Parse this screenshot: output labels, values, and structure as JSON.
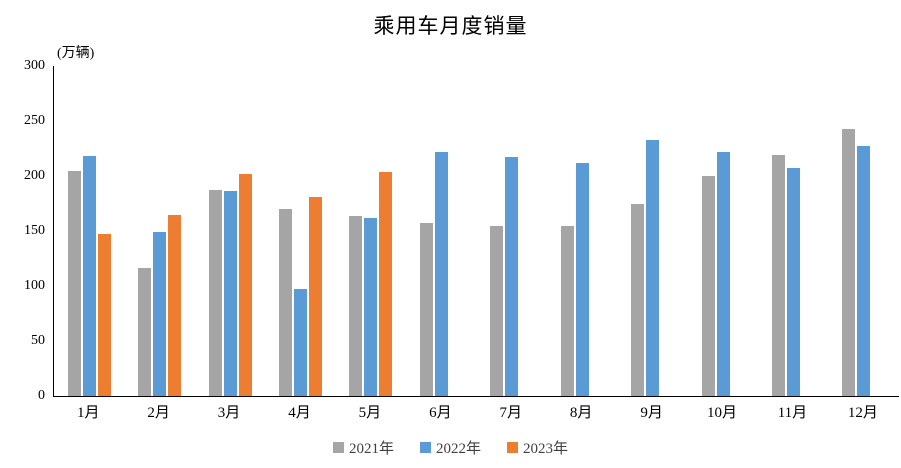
{
  "chart_data": {
    "type": "bar",
    "title": "乘用车月度销量",
    "unit_label": "(万辆)",
    "categories": [
      "1月",
      "2月",
      "3月",
      "4月",
      "5月",
      "6月",
      "7月",
      "8月",
      "9月",
      "10月",
      "11月",
      "12月"
    ],
    "series": [
      {
        "name": "2021年",
        "color": "#A5A5A5",
        "values": [
          205,
          116,
          187,
          170,
          164,
          157,
          155,
          155,
          175,
          200,
          219,
          243
        ]
      },
      {
        "name": "2022年",
        "color": "#5B9BD5",
        "values": [
          218,
          149,
          186,
          97,
          162,
          222,
          217,
          212,
          233,
          222,
          207,
          227
        ]
      },
      {
        "name": "2023年",
        "color": "#ED7D31",
        "values": [
          147,
          165,
          202,
          181,
          204,
          null,
          null,
          null,
          null,
          null,
          null,
          null
        ]
      }
    ],
    "xlabel": "",
    "ylabel": "",
    "ylim": [
      0,
      300
    ],
    "yticks": [
      0,
      50,
      100,
      150,
      200,
      250,
      300
    ],
    "grid": false,
    "legend_position": "bottom"
  }
}
